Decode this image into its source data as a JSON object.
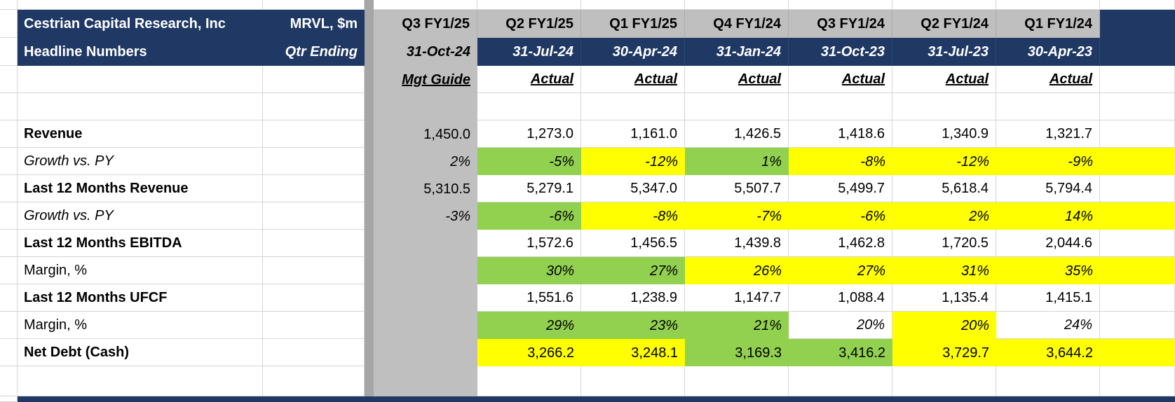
{
  "colors": {
    "navy_header": "#1F3864",
    "column_header_gray": "#BFBFBF",
    "separator_gray": "#A6A6A6",
    "beat_highlight_green": "#92D050",
    "miss_highlight_yellow": "#FFFF00",
    "gridline": "#D6D6D6"
  },
  "table": {
    "title": "Cestrian Capital Research, Inc",
    "subtitle": "Headline Numbers",
    "ticker": "MRVL, $m",
    "qtr_ending_label": "Qtr Ending",
    "columns": [
      {
        "quarter": "Q3 FY1/25",
        "date": "31-Oct-24",
        "basis": "Mgt Guide"
      },
      {
        "quarter": "Q2 FY1/25",
        "date": "31-Jul-24",
        "basis": "Actual"
      },
      {
        "quarter": "Q1 FY1/25",
        "date": "30-Apr-24",
        "basis": "Actual"
      },
      {
        "quarter": "Q4 FY1/24",
        "date": "31-Jan-24",
        "basis": "Actual"
      },
      {
        "quarter": "Q3 FY1/24",
        "date": "31-Oct-23",
        "basis": "Actual"
      },
      {
        "quarter": "Q2 FY1/24",
        "date": "31-Jul-23",
        "basis": "Actual"
      },
      {
        "quarter": "Q1 FY1/24",
        "date": "30-Apr-23",
        "basis": "Actual"
      }
    ],
    "rows": [
      {
        "label": "Revenue",
        "label_style": "bold",
        "value_style": "regular",
        "values": [
          "1,450.0",
          "1,273.0",
          "1,161.0",
          "1,426.5",
          "1,418.6",
          "1,340.9",
          "1,321.7"
        ],
        "fills": [
          "gray",
          "white",
          "white",
          "white",
          "white",
          "white",
          "white"
        ]
      },
      {
        "label": "Growth vs. PY",
        "label_style": "italic",
        "value_style": "italic",
        "values": [
          "2%",
          "-5%",
          "-12%",
          "1%",
          "-8%",
          "-12%",
          "-9%"
        ],
        "fills": [
          "gray",
          "green",
          "yellow",
          "green",
          "yellow",
          "yellow",
          "yellow"
        ]
      },
      {
        "label": "Last 12 Months Revenue",
        "label_style": "bold",
        "value_style": "regular",
        "values": [
          "5,310.5",
          "5,279.1",
          "5,347.0",
          "5,507.7",
          "5,499.7",
          "5,618.4",
          "5,794.4"
        ],
        "fills": [
          "gray",
          "white",
          "white",
          "white",
          "white",
          "white",
          "white"
        ]
      },
      {
        "label": "Growth vs. PY",
        "label_style": "italic",
        "value_style": "italic",
        "values": [
          "-3%",
          "-6%",
          "-8%",
          "-7%",
          "-6%",
          "2%",
          "14%"
        ],
        "fills": [
          "gray",
          "green",
          "yellow",
          "yellow",
          "yellow",
          "yellow",
          "yellow"
        ]
      },
      {
        "label": "Last 12 Months EBITDA",
        "label_style": "bold",
        "value_style": "regular",
        "values": [
          "",
          "1,572.6",
          "1,456.5",
          "1,439.8",
          "1,462.8",
          "1,720.5",
          "2,044.6"
        ],
        "fills": [
          "gray",
          "white",
          "white",
          "white",
          "white",
          "white",
          "white"
        ]
      },
      {
        "label": "Margin, %",
        "label_style": "regular",
        "value_style": "italic",
        "values": [
          "",
          "30%",
          "27%",
          "26%",
          "27%",
          "31%",
          "35%"
        ],
        "fills": [
          "gray",
          "green",
          "green",
          "yellow",
          "yellow",
          "yellow",
          "yellow"
        ]
      },
      {
        "label": "Last 12 Months UFCF",
        "label_style": "bold",
        "value_style": "regular",
        "values": [
          "",
          "1,551.6",
          "1,238.9",
          "1,147.7",
          "1,088.4",
          "1,135.4",
          "1,415.1"
        ],
        "fills": [
          "gray",
          "white",
          "white",
          "white",
          "white",
          "white",
          "white"
        ]
      },
      {
        "label": "Margin, %",
        "label_style": "regular",
        "value_style": "italic",
        "values": [
          "",
          "29%",
          "23%",
          "21%",
          "20%",
          "20%",
          "24%"
        ],
        "fills": [
          "gray",
          "green",
          "green",
          "green",
          "white",
          "yellow",
          "white"
        ]
      },
      {
        "label": "Net Debt (Cash)",
        "label_style": "bold",
        "value_style": "regular",
        "values": [
          "",
          "3,266.2",
          "3,248.1",
          "3,169.3",
          "3,416.2",
          "3,729.7",
          "3,644.2"
        ],
        "fills": [
          "gray",
          "yellow",
          "yellow",
          "green",
          "green",
          "yellow",
          "yellow"
        ]
      }
    ],
    "cut_right_column": {
      "header_fill": "navy",
      "row_fills": [
        "white",
        "yellow",
        "white",
        "yellow",
        "white",
        "yellow",
        "white",
        "white",
        "yellow"
      ]
    }
  }
}
